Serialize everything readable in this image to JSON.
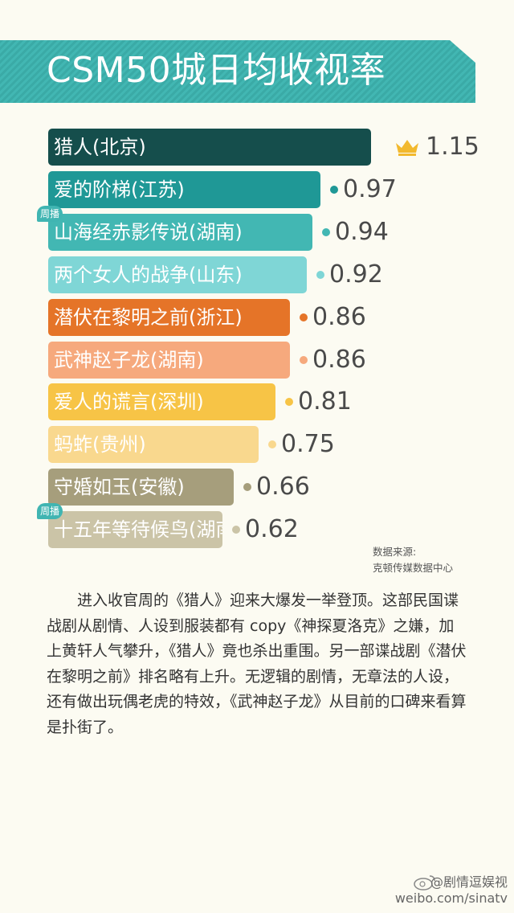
{
  "header": {
    "title": "CSM50城日均收视率"
  },
  "chart_data": {
    "type": "bar",
    "orientation": "horizontal",
    "title": "CSM50城日均收视率",
    "categories": [
      "猎人(北京)",
      "爱的阶梯(江苏)",
      "山海经赤影传说(湖南)",
      "两个女人的战争(山东)",
      "潜伏在黎明之前(浙江)",
      "武神赵子龙(湖南)",
      "爱人的谎言(深圳)",
      "蚂蚱(贵州)",
      "守婚如玉(安徽)",
      "十五年等待候鸟(湖南)"
    ],
    "values": [
      1.15,
      0.97,
      0.94,
      0.92,
      0.86,
      0.86,
      0.81,
      0.75,
      0.66,
      0.62
    ],
    "value_labels": [
      "1.15",
      "0.97",
      "0.94",
      "0.92",
      "0.86",
      "0.86",
      "0.81",
      "0.75",
      "0.66",
      "0.62"
    ],
    "bar_colors": [
      "#154e4c",
      "#1f9896",
      "#42b7b3",
      "#7fd6d6",
      "#e57428",
      "#f6a97d",
      "#f7c446",
      "#f9d88e",
      "#a69e7c",
      "#cbc4a7"
    ],
    "badges": [
      "",
      "",
      "周播",
      "",
      "",
      "",
      "",
      "",
      "",
      "周播"
    ],
    "xlim": [
      0,
      1.15
    ],
    "grid": false,
    "legend": "none"
  },
  "source": {
    "label": "数据来源:",
    "value": "克顿传媒数据中心"
  },
  "article": {
    "text": "进入收官周的《猎人》迎来大爆发一举登顶。这部民国谍战剧从剧情、人设到服装都有 copy《神探夏洛克》之嫌，加上黄轩人气攀升，《猎人》竟也杀出重围。另一部谍战剧《潜伏在黎明之前》排名略有上升。无逻辑的剧情，无章法的人设，还有做出玩偶老虎的特效，《武神赵子龙》从目前的口碑来看算是扑街了。"
  },
  "watermark": {
    "account": "@剧情逗娱视",
    "url": "weibo.com/sinatv"
  },
  "colors": {
    "accent": "#42b7b3",
    "crown": "#f2b92e"
  }
}
